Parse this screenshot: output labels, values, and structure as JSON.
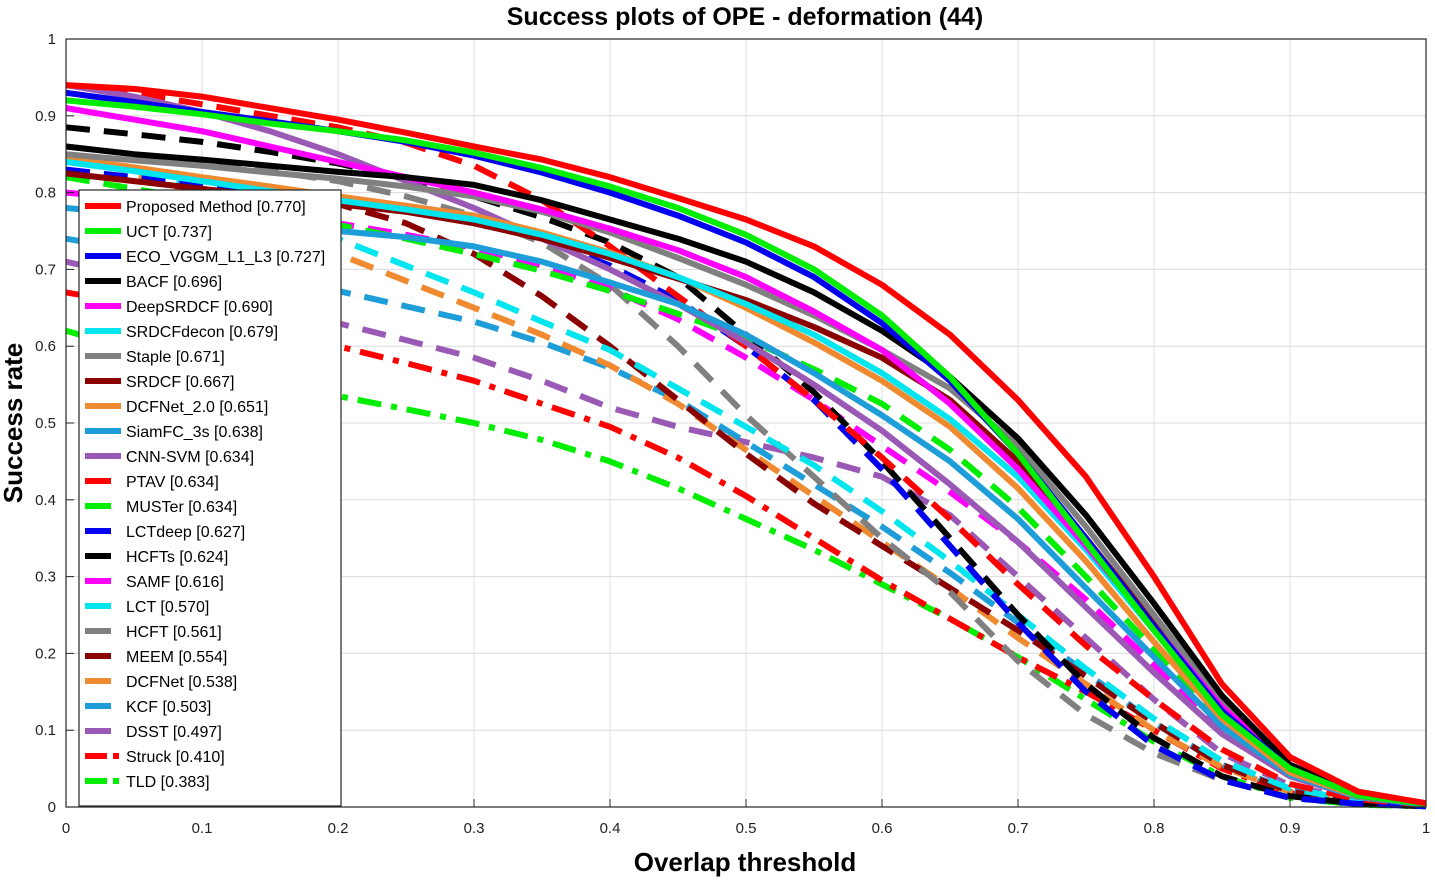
{
  "chart_data": {
    "type": "line",
    "title": "Success plots of OPE - deformation (44)",
    "xlabel": "Overlap threshold",
    "ylabel": "Success rate",
    "xlim": [
      0,
      1
    ],
    "ylim": [
      0,
      1
    ],
    "grid": true,
    "legend_position": "left",
    "x_ticks": [
      "0",
      "0.1",
      "0.2",
      "0.3",
      "0.4",
      "0.5",
      "0.6",
      "0.7",
      "0.8",
      "0.9",
      "1"
    ],
    "y_ticks": [
      "0",
      "0.1",
      "0.2",
      "0.3",
      "0.4",
      "0.5",
      "0.6",
      "0.7",
      "0.8",
      "0.9",
      "1"
    ],
    "x": [
      0,
      0.05,
      0.1,
      0.15,
      0.2,
      0.25,
      0.3,
      0.35,
      0.4,
      0.45,
      0.5,
      0.55,
      0.6,
      0.65,
      0.7,
      0.75,
      0.8,
      0.85,
      0.9,
      0.95,
      1.0
    ],
    "series": [
      {
        "name": "Proposed Method",
        "auc": "0.770",
        "label": "Proposed Method [0.770]",
        "color": "#ff0000",
        "style": "solid",
        "values": [
          0.94,
          0.935,
          0.925,
          0.91,
          0.895,
          0.878,
          0.86,
          0.843,
          0.82,
          0.793,
          0.765,
          0.73,
          0.68,
          0.615,
          0.53,
          0.43,
          0.3,
          0.16,
          0.065,
          0.02,
          0.005
        ]
      },
      {
        "name": "UCT",
        "auc": "0.737",
        "label": "UCT [0.737]",
        "color": "#00ee00",
        "style": "solid",
        "values": [
          0.92,
          0.912,
          0.902,
          0.89,
          0.88,
          0.868,
          0.852,
          0.832,
          0.808,
          0.78,
          0.745,
          0.7,
          0.64,
          0.56,
          0.46,
          0.345,
          0.23,
          0.12,
          0.05,
          0.015,
          0.004
        ]
      },
      {
        "name": "ECO_VGGM_L1_L3",
        "auc": "0.727",
        "label": "ECO_VGGM_L1_L3 [0.727]",
        "color": "#0000ee",
        "style": "solid",
        "values": [
          0.93,
          0.918,
          0.905,
          0.893,
          0.88,
          0.866,
          0.848,
          0.826,
          0.8,
          0.77,
          0.735,
          0.69,
          0.63,
          0.555,
          0.46,
          0.35,
          0.235,
          0.125,
          0.05,
          0.015,
          0.004
        ]
      },
      {
        "name": "BACF",
        "auc": "0.696",
        "label": "BACF [0.696]",
        "color": "#000000",
        "style": "solid",
        "values": [
          0.86,
          0.85,
          0.843,
          0.835,
          0.827,
          0.82,
          0.81,
          0.79,
          0.765,
          0.74,
          0.71,
          0.67,
          0.62,
          0.56,
          0.48,
          0.38,
          0.265,
          0.145,
          0.055,
          0.016,
          0.004
        ]
      },
      {
        "name": "DeepSRDCF",
        "auc": "0.690",
        "label": "DeepSRDCF [0.690]",
        "color": "#ff00ff",
        "style": "solid",
        "values": [
          0.91,
          0.895,
          0.88,
          0.86,
          0.84,
          0.82,
          0.8,
          0.778,
          0.753,
          0.725,
          0.69,
          0.645,
          0.595,
          0.525,
          0.44,
          0.34,
          0.235,
          0.13,
          0.055,
          0.018,
          0.005
        ]
      },
      {
        "name": "SRDCFdecon",
        "auc": "0.679",
        "label": "SRDCFdecon [0.679]",
        "color": "#00e5ee",
        "style": "solid",
        "values": [
          0.84,
          0.828,
          0.815,
          0.802,
          0.79,
          0.778,
          0.765,
          0.745,
          0.72,
          0.69,
          0.655,
          0.615,
          0.565,
          0.505,
          0.43,
          0.335,
          0.23,
          0.125,
          0.05,
          0.015,
          0.004
        ]
      },
      {
        "name": "Staple",
        "auc": "0.671",
        "label": "Staple [0.671]",
        "color": "#808080",
        "style": "solid",
        "values": [
          0.85,
          0.842,
          0.835,
          0.826,
          0.818,
          0.808,
          0.795,
          0.775,
          0.748,
          0.715,
          0.68,
          0.64,
          0.595,
          0.545,
          0.47,
          0.365,
          0.25,
          0.135,
          0.052,
          0.015,
          0.004
        ]
      },
      {
        "name": "SRDCF",
        "auc": "0.667",
        "label": "SRDCF [0.667]",
        "color": "#8b0000",
        "style": "solid",
        "values": [
          0.825,
          0.815,
          0.805,
          0.795,
          0.785,
          0.775,
          0.76,
          0.74,
          0.715,
          0.688,
          0.66,
          0.625,
          0.585,
          0.53,
          0.45,
          0.35,
          0.24,
          0.13,
          0.052,
          0.015,
          0.004
        ]
      },
      {
        "name": "DCFNet_2.0",
        "auc": "0.651",
        "label": "DCFNet_2.0 [0.651]",
        "color": "#f08a30",
        "style": "solid",
        "values": [
          0.845,
          0.833,
          0.82,
          0.808,
          0.795,
          0.783,
          0.77,
          0.748,
          0.722,
          0.69,
          0.65,
          0.605,
          0.555,
          0.495,
          0.415,
          0.32,
          0.215,
          0.115,
          0.045,
          0.014,
          0.004
        ]
      },
      {
        "name": "SiamFC_3s",
        "auc": "0.638",
        "label": "SiamFC_3s [0.638]",
        "color": "#1e9ed8",
        "style": "solid",
        "values": [
          0.78,
          0.772,
          0.765,
          0.758,
          0.75,
          0.742,
          0.73,
          0.71,
          0.683,
          0.655,
          0.615,
          0.565,
          0.51,
          0.45,
          0.375,
          0.285,
          0.195,
          0.105,
          0.042,
          0.013,
          0.003
        ]
      },
      {
        "name": "CNN-SVM",
        "auc": "0.634",
        "label": "CNN-SVM [0.634]",
        "color": "#9b59b6",
        "style": "solid",
        "values": [
          0.94,
          0.925,
          0.905,
          0.88,
          0.85,
          0.815,
          0.78,
          0.74,
          0.7,
          0.655,
          0.605,
          0.55,
          0.49,
          0.42,
          0.345,
          0.26,
          0.175,
          0.095,
          0.04,
          0.013,
          0.003
        ]
      },
      {
        "name": "PTAV",
        "auc": "0.634",
        "label": "PTAV [0.634]",
        "color": "#ff0000",
        "style": "dash",
        "values": [
          0.94,
          0.93,
          0.915,
          0.9,
          0.885,
          0.865,
          0.835,
          0.79,
          0.73,
          0.665,
          0.6,
          0.53,
          0.455,
          0.375,
          0.29,
          0.21,
          0.14,
          0.075,
          0.03,
          0.01,
          0.003
        ]
      },
      {
        "name": "MUSTer",
        "auc": "0.634",
        "label": "MUSTer [0.634]",
        "color": "#00ee00",
        "style": "dash",
        "values": [
          0.82,
          0.805,
          0.79,
          0.775,
          0.758,
          0.74,
          0.72,
          0.698,
          0.672,
          0.642,
          0.61,
          0.57,
          0.525,
          0.465,
          0.39,
          0.3,
          0.205,
          0.11,
          0.045,
          0.014,
          0.004
        ]
      },
      {
        "name": "LCTdeep",
        "auc": "0.627",
        "label": "LCTdeep [0.627]",
        "color": "#0000ee",
        "style": "dash",
        "values": [
          0.83,
          0.82,
          0.81,
          0.8,
          0.79,
          0.78,
          0.765,
          0.74,
          0.705,
          0.66,
          0.6,
          0.53,
          0.44,
          0.34,
          0.24,
          0.15,
          0.08,
          0.035,
          0.012,
          0.004,
          0.001
        ]
      },
      {
        "name": "HCFTs",
        "auc": "0.624",
        "label": "HCFTs [0.624]",
        "color": "#000000",
        "style": "dash",
        "values": [
          0.885,
          0.876,
          0.866,
          0.853,
          0.838,
          0.818,
          0.795,
          0.768,
          0.735,
          0.69,
          0.615,
          0.54,
          0.45,
          0.35,
          0.25,
          0.16,
          0.09,
          0.04,
          0.014,
          0.004,
          0.001
        ]
      },
      {
        "name": "SAMF",
        "auc": "0.616",
        "label": "SAMF [0.616]",
        "color": "#ff00ff",
        "style": "dash",
        "values": [
          0.8,
          0.792,
          0.783,
          0.772,
          0.76,
          0.745,
          0.728,
          0.705,
          0.675,
          0.635,
          0.585,
          0.53,
          0.47,
          0.41,
          0.345,
          0.27,
          0.185,
          0.1,
          0.04,
          0.013,
          0.003
        ]
      },
      {
        "name": "LCT",
        "auc": "0.570",
        "label": "LCT [0.570]",
        "color": "#00e5ee",
        "style": "dash",
        "values": [
          0.85,
          0.83,
          0.805,
          0.775,
          0.74,
          0.705,
          0.67,
          0.632,
          0.595,
          0.545,
          0.495,
          0.445,
          0.385,
          0.32,
          0.25,
          0.18,
          0.115,
          0.06,
          0.024,
          0.008,
          0.002
        ]
      },
      {
        "name": "HCFT",
        "auc": "0.561",
        "label": "HCFT [0.561]",
        "color": "#808080",
        "style": "dash",
        "values": [
          0.86,
          0.85,
          0.84,
          0.828,
          0.815,
          0.795,
          0.77,
          0.735,
          0.68,
          0.6,
          0.51,
          0.43,
          0.35,
          0.28,
          0.19,
          0.12,
          0.07,
          0.035,
          0.012,
          0.004,
          0.001
        ]
      },
      {
        "name": "MEEM",
        "auc": "0.554",
        "label": "MEEM [0.554]",
        "color": "#8b0000",
        "style": "dash",
        "values": [
          0.84,
          0.83,
          0.818,
          0.803,
          0.785,
          0.76,
          0.72,
          0.665,
          0.6,
          0.53,
          0.46,
          0.395,
          0.34,
          0.285,
          0.23,
          0.17,
          0.11,
          0.055,
          0.02,
          0.006,
          0.002
        ]
      },
      {
        "name": "DCFNet",
        "auc": "0.538",
        "label": "DCFNet [0.538]",
        "color": "#f08a30",
        "style": "dash",
        "values": [
          0.85,
          0.825,
          0.795,
          0.76,
          0.72,
          0.685,
          0.65,
          0.615,
          0.575,
          0.525,
          0.465,
          0.405,
          0.345,
          0.285,
          0.22,
          0.16,
          0.1,
          0.052,
          0.02,
          0.006,
          0.002
        ]
      },
      {
        "name": "KCF",
        "auc": "0.503",
        "label": "KCF [0.503]",
        "color": "#1e9ed8",
        "style": "dash",
        "values": [
          0.74,
          0.725,
          0.71,
          0.692,
          0.672,
          0.652,
          0.632,
          0.605,
          0.572,
          0.53,
          0.475,
          0.42,
          0.365,
          0.305,
          0.24,
          0.175,
          0.11,
          0.055,
          0.022,
          0.007,
          0.002
        ]
      },
      {
        "name": "DSST",
        "auc": "0.497",
        "label": "DSST [0.497]",
        "color": "#9b59b6",
        "style": "dash",
        "values": [
          0.71,
          0.69,
          0.67,
          0.65,
          0.63,
          0.608,
          0.585,
          0.555,
          0.52,
          0.495,
          0.475,
          0.455,
          0.43,
          0.38,
          0.3,
          0.22,
          0.14,
          0.07,
          0.028,
          0.009,
          0.002
        ]
      },
      {
        "name": "Struck",
        "auc": "0.410",
        "label": "Struck [0.410]",
        "color": "#ff0000",
        "style": "dashdot",
        "values": [
          0.67,
          0.655,
          0.64,
          0.62,
          0.6,
          0.578,
          0.555,
          0.525,
          0.495,
          0.455,
          0.405,
          0.35,
          0.295,
          0.245,
          0.195,
          0.15,
          0.1,
          0.05,
          0.018,
          0.005,
          0.001
        ]
      },
      {
        "name": "TLD",
        "auc": "0.383",
        "label": "TLD [0.383]",
        "color": "#00ee00",
        "style": "dashdot",
        "values": [
          0.62,
          0.595,
          0.57,
          0.55,
          0.535,
          0.518,
          0.5,
          0.478,
          0.45,
          0.415,
          0.375,
          0.335,
          0.29,
          0.245,
          0.195,
          0.14,
          0.085,
          0.04,
          0.012,
          0.003,
          0.001
        ]
      }
    ]
  }
}
